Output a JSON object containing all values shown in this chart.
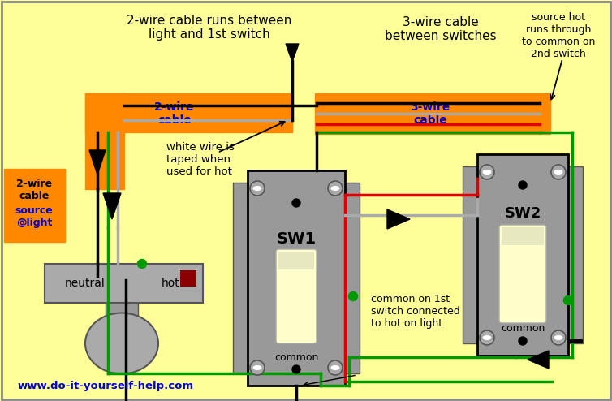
{
  "bg_color": "#FFFF99",
  "border_color": "#888888",
  "orange_color": "#FF8800",
  "red_color": "#DD0000",
  "green_color": "#009900",
  "black_color": "#000000",
  "white_color": "#FFFFFF",
  "gray_color": "#888888",
  "blue_color": "#0000CC",
  "dark_gray": "#555555",
  "light_gray": "#AAAAAA",
  "switch_gray": "#999999",
  "switch_dark": "#888888",
  "cream_color": "#FFFFCC",
  "annotation_2wire_top": "2-wire cable runs between\nlight and 1st switch",
  "annotation_3wire_top": "3-wire cable\nbetween switches",
  "annotation_source_hot": "source hot\nruns through\nto common on\n2nd switch",
  "annotation_white_wire": "white wire is\ntaped when\nused for hot",
  "label_2wire_cable": "2-wire\ncable",
  "label_3wire_cable": "3-wire\ncable",
  "label_2wire_side_1": "2-wire\ncable",
  "label_2wire_side_2": "source\n@light",
  "annotation_common1": "common on 1st\nswitch connected\nto hot on light",
  "label_neutral": "neutral",
  "label_hot": "hot",
  "label_sw1": "SW1",
  "label_sw2": "SW2",
  "label_common_sw1": "common",
  "label_common_sw2": "common",
  "label_www": "www.do-it-yourself-help.com"
}
